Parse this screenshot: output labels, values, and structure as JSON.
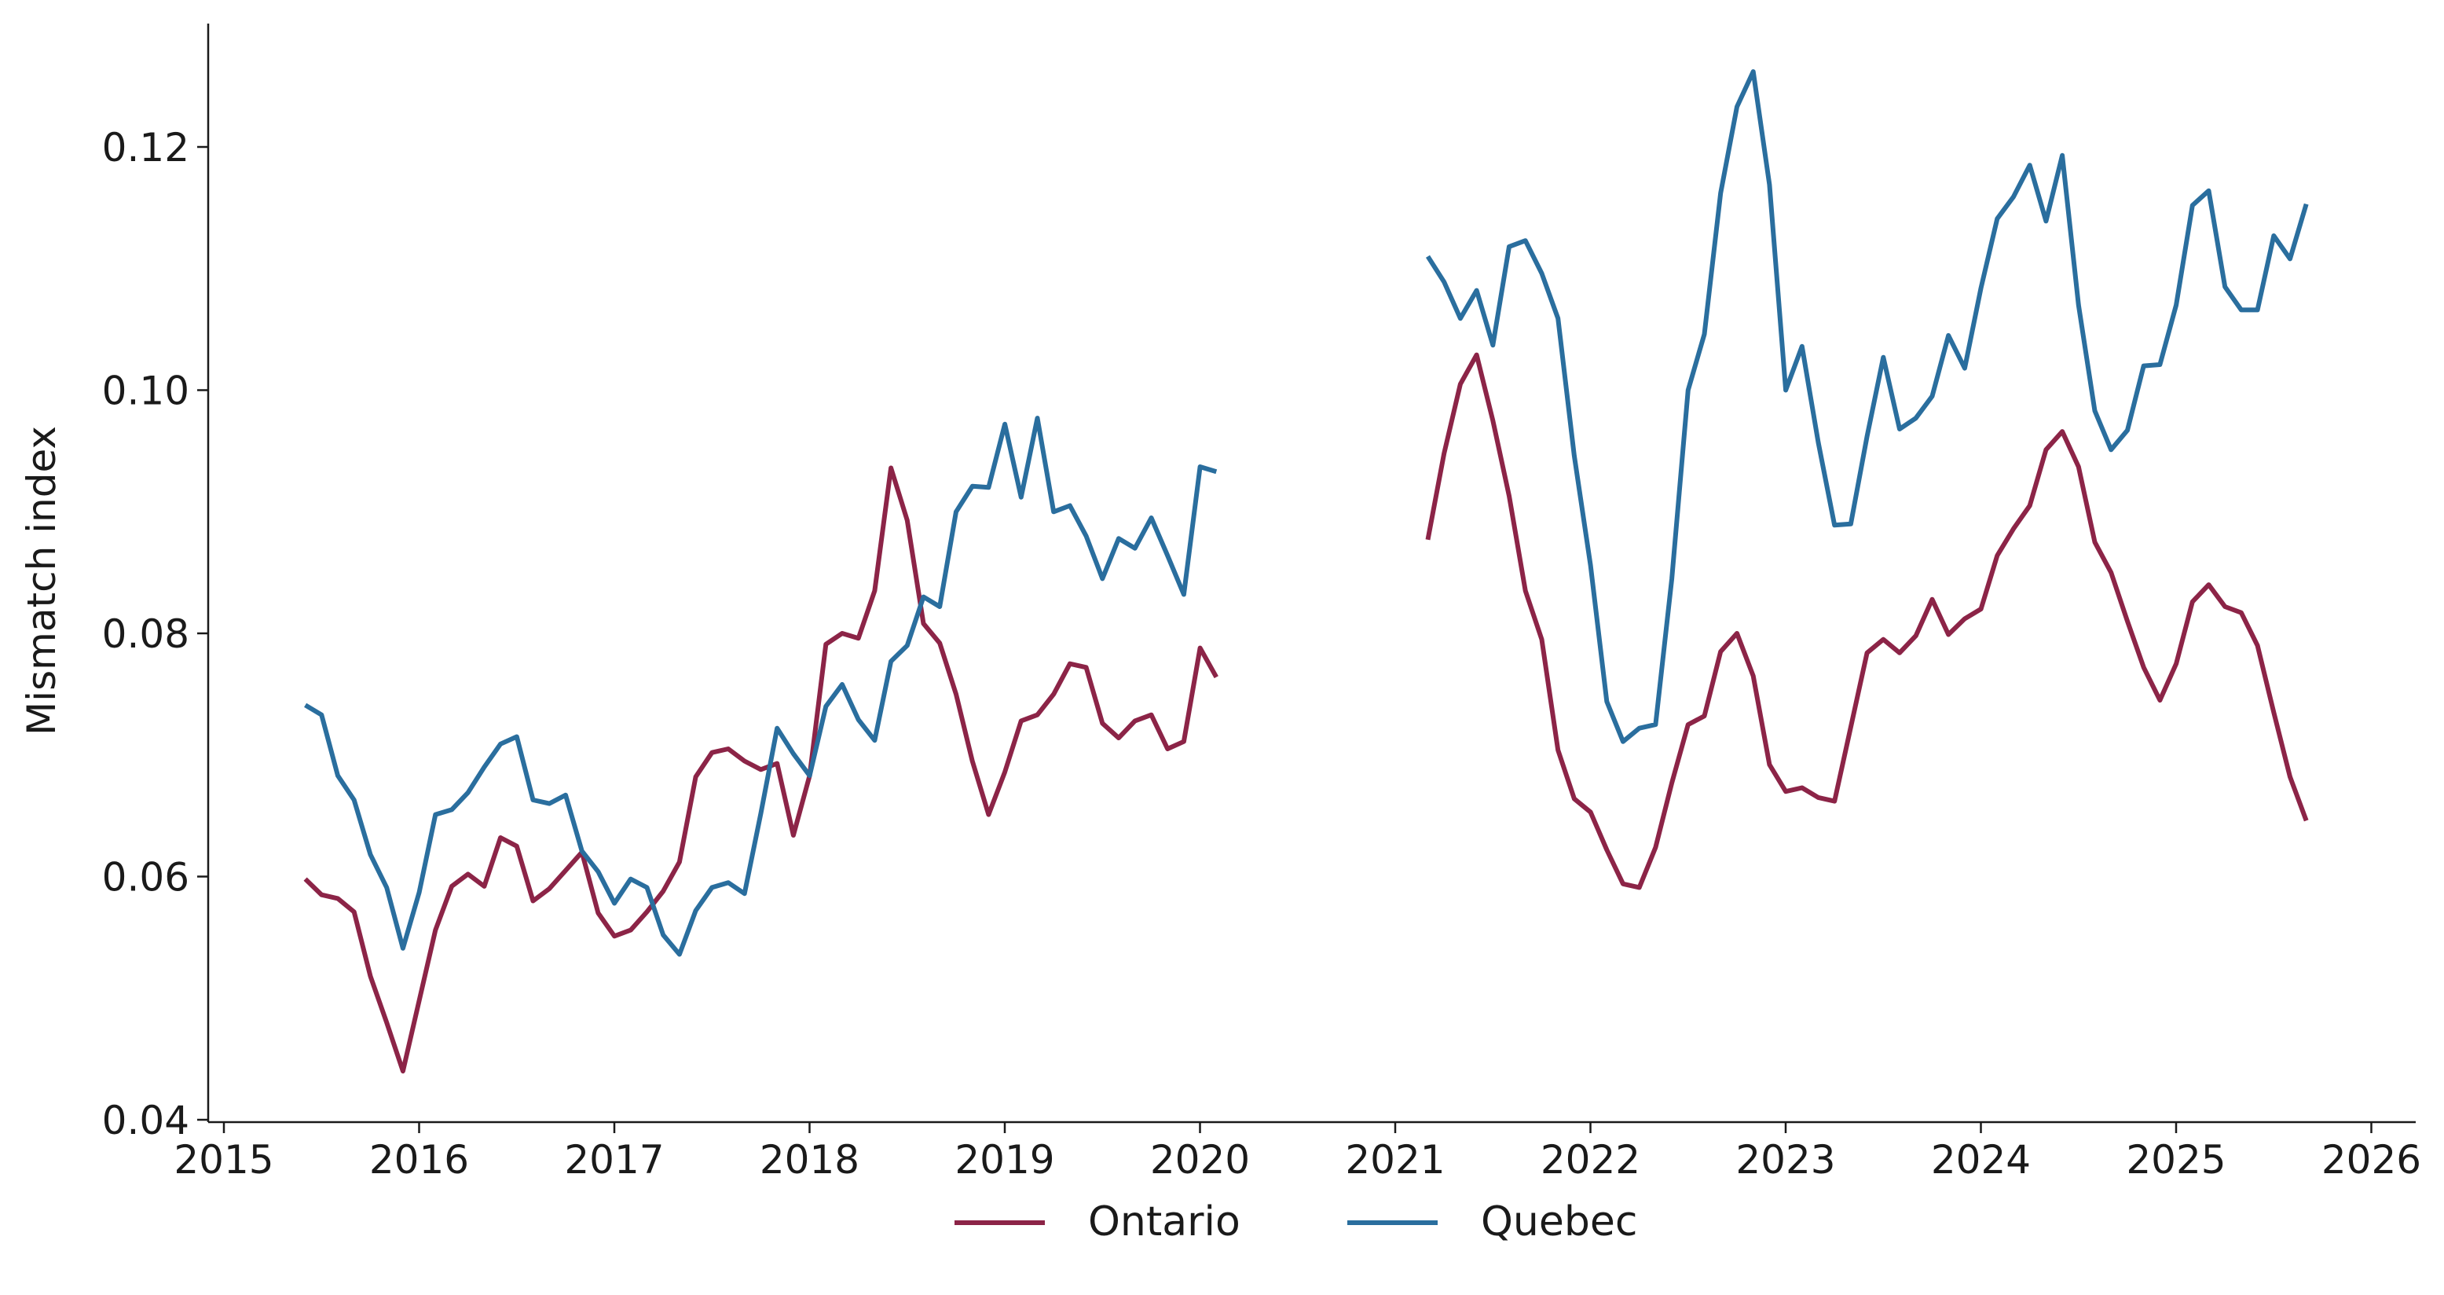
{
  "chart_data": {
    "type": "line",
    "xlabel": "",
    "ylabel": "Mismatch index",
    "xlim": [
      2015.0,
      2026.2
    ],
    "ylim": [
      0.04,
      0.13
    ],
    "xticks": [
      "2015",
      "2016",
      "2017",
      "2018",
      "2019",
      "2020",
      "2021",
      "2022",
      "2023",
      "2024",
      "2025",
      "2026"
    ],
    "yticks": [
      "0.04",
      "0.06",
      "0.08",
      "0.10",
      "0.12"
    ],
    "grid": false,
    "legend_position": "bottom-center",
    "series": [
      {
        "name": "Ontario",
        "color": "#8c2447",
        "segments": [
          {
            "x_start": 2015.417,
            "x_step": 0.0833333,
            "values": [
              0.0598,
              0.0585,
              0.0582,
              0.0571,
              0.0518,
              0.048,
              0.044,
              0.0498,
              0.0556,
              0.0592,
              0.0602,
              0.0592,
              0.0632,
              0.0625,
              0.058,
              0.059,
              0.0605,
              0.062,
              0.057,
              0.0551,
              0.0556,
              0.0571,
              0.0588,
              0.0612,
              0.0682,
              0.0702,
              0.0705,
              0.0695,
              0.0688,
              0.0693,
              0.0634,
              0.0683,
              0.0791,
              0.08,
              0.0796,
              0.0835,
              0.0936,
              0.0893,
              0.0808,
              0.0792,
              0.075,
              0.0695,
              0.0651,
              0.0686,
              0.0728,
              0.0733,
              0.075,
              0.0775,
              0.0772,
              0.0726,
              0.0714,
              0.0728,
              0.0733,
              0.0705,
              0.0711,
              0.0788,
              0.0764
            ]
          },
          {
            "x_start": 2021.167,
            "x_step": 0.0833333,
            "values": [
              0.0877,
              0.0948,
              0.1005,
              0.1029,
              0.0975,
              0.0913,
              0.0835,
              0.0795,
              0.0704,
              0.0664,
              0.0653,
              0.0622,
              0.0594,
              0.0591,
              0.0624,
              0.0677,
              0.0725,
              0.0732,
              0.0785,
              0.08,
              0.0765,
              0.0692,
              0.067,
              0.0673,
              0.0665,
              0.0662,
              0.0723,
              0.0784,
              0.0795,
              0.0784,
              0.0798,
              0.0828,
              0.0799,
              0.0812,
              0.082,
              0.0864,
              0.0886,
              0.0905,
              0.0951,
              0.0966,
              0.0937,
              0.0875,
              0.085,
              0.081,
              0.0772,
              0.0745,
              0.0775,
              0.0826,
              0.084,
              0.0822,
              0.0817,
              0.079,
              0.0735,
              0.0682,
              0.0646
            ]
          }
        ]
      },
      {
        "name": "Quebec",
        "color": "#2a6e9e",
        "segments": [
          {
            "x_start": 2015.417,
            "x_step": 0.0833333,
            "values": [
              0.0741,
              0.0733,
              0.0683,
              0.0663,
              0.0618,
              0.0591,
              0.0541,
              0.0587,
              0.0651,
              0.0655,
              0.0669,
              0.069,
              0.0709,
              0.0715,
              0.0663,
              0.066,
              0.0667,
              0.0621,
              0.0604,
              0.0578,
              0.0598,
              0.0591,
              0.0552,
              0.0536,
              0.0572,
              0.0591,
              0.0595,
              0.0586,
              0.0652,
              0.0722,
              0.0701,
              0.0683,
              0.074,
              0.0758,
              0.0729,
              0.0712,
              0.0777,
              0.079,
              0.083,
              0.0822,
              0.09,
              0.0921,
              0.092,
              0.0972,
              0.0912,
              0.0977,
              0.09,
              0.0905,
              0.088,
              0.0845,
              0.0878,
              0.087,
              0.0895,
              0.0864,
              0.0832,
              0.0937,
              0.0933
            ]
          },
          {
            "x_start": 2021.167,
            "x_step": 0.0833333,
            "values": [
              0.111,
              0.1089,
              0.1059,
              0.1082,
              0.1037,
              0.1118,
              0.1123,
              0.1096,
              0.1059,
              0.0946,
              0.0856,
              0.0744,
              0.0711,
              0.0722,
              0.0725,
              0.0845,
              0.1,
              0.1046,
              0.1162,
              0.1233,
              0.1262,
              0.1169,
              0.1,
              0.1036,
              0.0957,
              0.0889,
              0.089,
              0.0962,
              0.1027,
              0.0968,
              0.0977,
              0.0995,
              0.1045,
              0.1018,
              0.1084,
              0.1141,
              0.1159,
              0.1185,
              0.1139,
              0.1193,
              0.107,
              0.0983,
              0.0951,
              0.0967,
              0.102,
              0.1021,
              0.107,
              0.1152,
              0.1164,
              0.1085,
              0.1066,
              0.1066,
              0.1127,
              0.1108,
              0.1153
            ]
          }
        ]
      }
    ]
  }
}
